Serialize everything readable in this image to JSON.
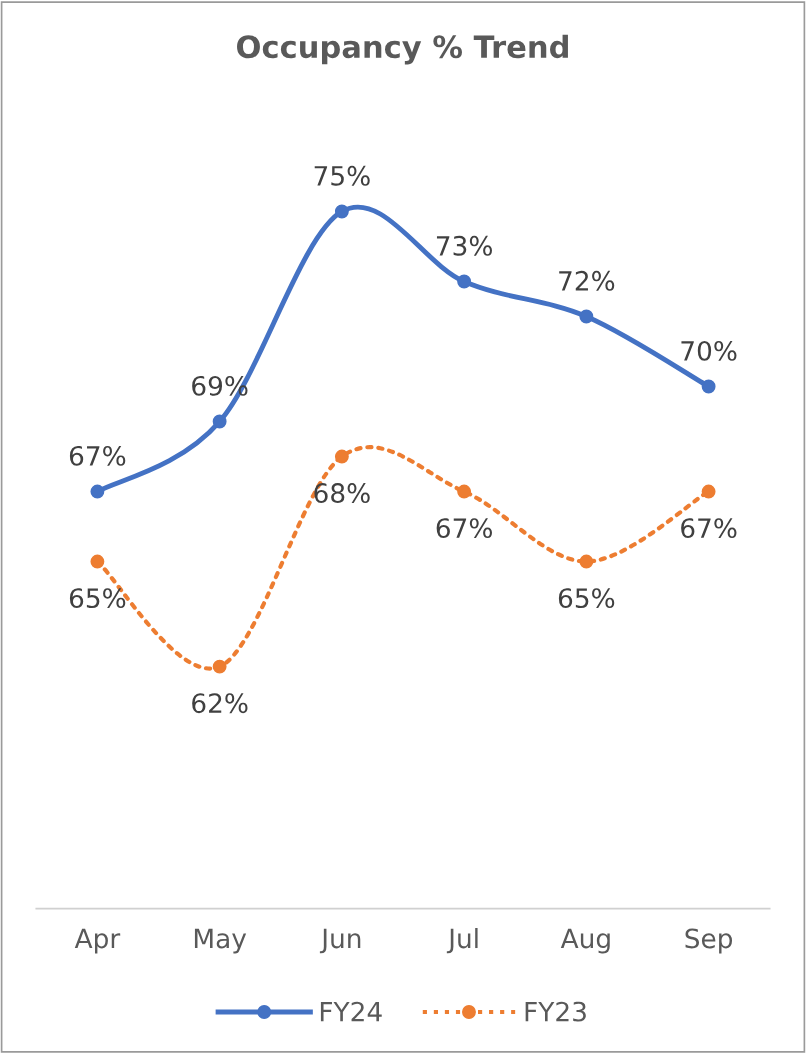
{
  "chart_data": {
    "type": "line",
    "title": "Occupancy % Trend",
    "categories": [
      "Apr",
      "May",
      "Jun",
      "Jul",
      "Aug",
      "Sep"
    ],
    "series": [
      {
        "name": "FY24",
        "color": "#4472c4",
        "values": [
          67,
          69,
          75,
          73,
          72,
          70
        ],
        "value_labels": [
          "67%",
          "69%",
          "75%",
          "73%",
          "72%",
          "70%"
        ],
        "line_style": "solid",
        "marker": "circle"
      },
      {
        "name": "FY23",
        "color": "#ed7d31",
        "values": [
          65,
          62,
          68,
          67,
          65,
          67
        ],
        "value_labels": [
          "65%",
          "62%",
          "68%",
          "67%",
          "65%",
          "67%"
        ],
        "line_style": "dotted",
        "marker": "circle"
      }
    ],
    "tick_labels": "x",
    "grid": false,
    "legend": "bottom"
  }
}
